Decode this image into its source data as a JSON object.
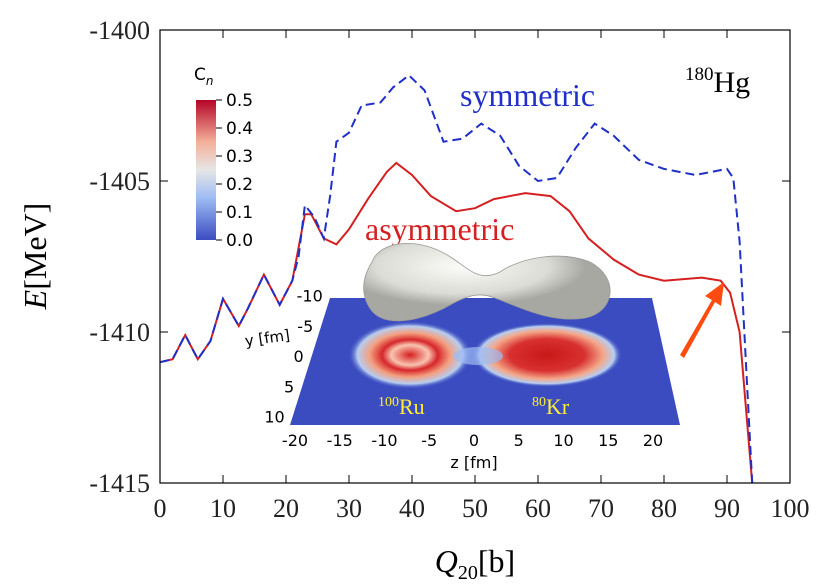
{
  "chart_data": {
    "type": "line",
    "x_label": {
      "symbol": "Q",
      "subscript": "20",
      "unit": "[b]"
    },
    "y_label": {
      "symbol": "E",
      "unit": "[MeV]"
    },
    "xlim": [
      0,
      100
    ],
    "xticks": [
      0,
      10,
      20,
      30,
      40,
      50,
      60,
      70,
      80,
      90,
      100
    ],
    "ylim": [
      -1415,
      -1400
    ],
    "yticks": [
      -1415,
      -1410,
      -1405,
      -1400
    ],
    "annotation": {
      "mass": "180",
      "element": "Hg"
    },
    "series": [
      {
        "name": "symmetric",
        "color": "#1f2fc8",
        "dash": true,
        "x": [
          0,
          2,
          4,
          6,
          8,
          10,
          12.5,
          14,
          16.5,
          19,
          21,
          22,
          23,
          24.5,
          26,
          27,
          28,
          30,
          32,
          35,
          37,
          39.5,
          42,
          45,
          48,
          51,
          54,
          57,
          60,
          63,
          66,
          69,
          72,
          76,
          80,
          85,
          90,
          91,
          92,
          93,
          94
        ],
        "values": [
          -1411.0,
          -1410.9,
          -1410.1,
          -1410.9,
          -1410.3,
          -1408.9,
          -1409.8,
          -1409.2,
          -1408.1,
          -1409.1,
          -1408.3,
          -1407.5,
          -1405.8,
          -1406.2,
          -1406.9,
          -1405.5,
          -1403.7,
          -1403.4,
          -1402.5,
          -1402.4,
          -1401.9,
          -1401.5,
          -1402.0,
          -1403.7,
          -1403.6,
          -1403.1,
          -1403.5,
          -1404.5,
          -1405.0,
          -1404.9,
          -1403.9,
          -1403.1,
          -1403.5,
          -1404.3,
          -1404.6,
          -1404.8,
          -1404.6,
          -1404.9,
          -1407.0,
          -1411.0,
          -1415.0
        ]
      },
      {
        "name": "asymmetric",
        "color": "#d42020",
        "dash": false,
        "x": [
          0,
          2,
          4,
          6,
          8,
          10,
          12.5,
          14,
          16.5,
          19,
          21,
          23,
          24,
          26,
          28,
          30,
          33,
          36,
          37.5,
          40,
          43,
          47,
          50,
          53,
          58,
          62,
          65,
          68,
          72,
          76,
          80,
          86,
          89,
          90.5,
          92,
          93,
          94
        ],
        "values": [
          -1411.0,
          -1410.9,
          -1410.1,
          -1410.9,
          -1410.3,
          -1408.9,
          -1409.8,
          -1409.2,
          -1408.1,
          -1409.1,
          -1408.3,
          -1406.1,
          -1406.1,
          -1406.9,
          -1407.1,
          -1406.6,
          -1405.6,
          -1404.7,
          -1404.4,
          -1404.8,
          -1405.5,
          -1406.0,
          -1405.9,
          -1405.6,
          -1405.4,
          -1405.5,
          -1406.0,
          -1406.9,
          -1407.6,
          -1408.1,
          -1408.3,
          -1408.2,
          -1408.3,
          -1408.7,
          -1410.0,
          -1412.5,
          -1415.0
        ]
      }
    ],
    "inset": {
      "colorbar": {
        "title": {
          "symbol": "C",
          "subscript": "n"
        },
        "lim": [
          0,
          0.5
        ],
        "ticks": [
          {
            "value": 0,
            "label": "0.0"
          },
          0.1,
          0.2,
          0.3,
          0.4,
          0.5
        ]
      },
      "y_label": "y [fm]",
      "yticks": [
        -10,
        -5,
        0,
        5,
        10
      ],
      "z_label": "z [fm]",
      "zticks": [
        -20,
        -15,
        -10,
        -5,
        0,
        5,
        10,
        15,
        20
      ],
      "fragments": [
        {
          "mass": "100",
          "element": "Ru"
        },
        {
          "mass": "80",
          "element": "Kr"
        }
      ]
    }
  }
}
